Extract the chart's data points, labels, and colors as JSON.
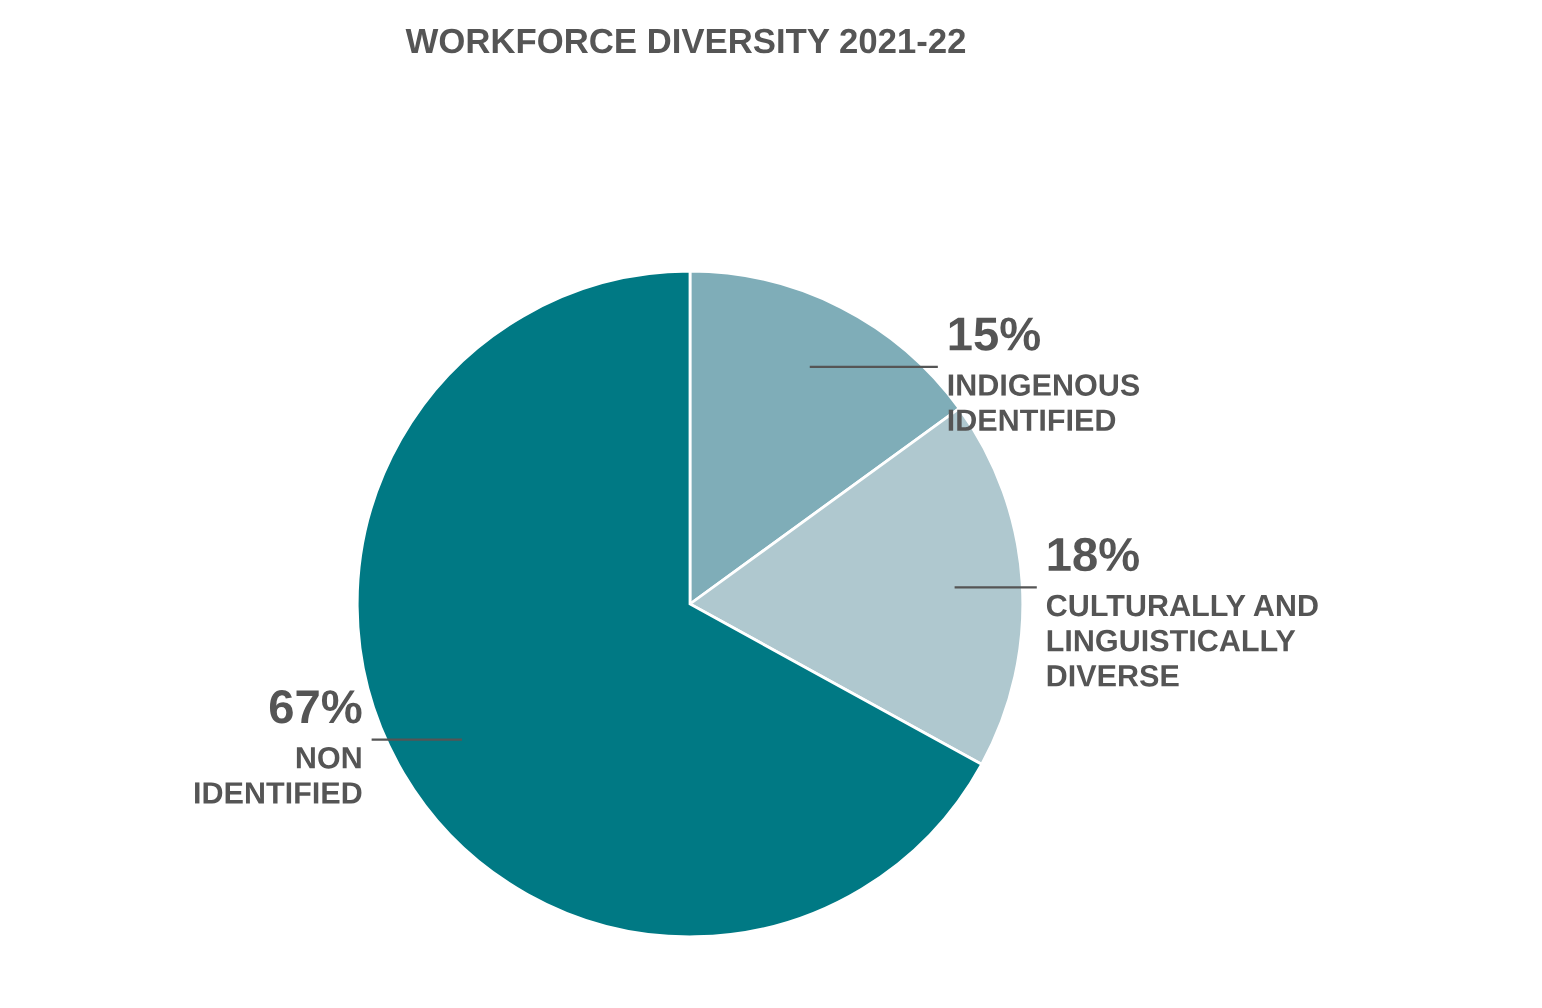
{
  "chart_data": {
    "type": "pie",
    "title": "WORKFORCE DIVERSITY 2021-22",
    "categories": [
      "INDIGENOUS\nIDENTIFIED",
      "CULTURALLY AND\nLINGUISTICALLY\nDIVERSE",
      "NON\nIDENTIFIED"
    ],
    "values": [
      15,
      18,
      67
    ],
    "value_labels": [
      "15%",
      "18%",
      "67%"
    ],
    "colors": [
      "#7fadb8",
      "#afc8cf",
      "#007984"
    ],
    "legend": false
  }
}
